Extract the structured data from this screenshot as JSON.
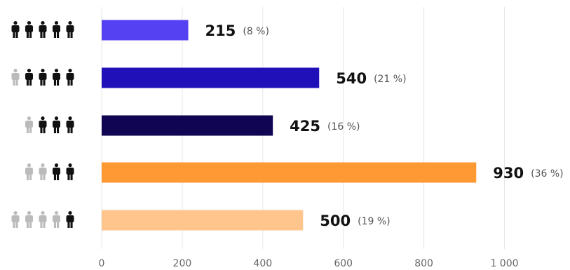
{
  "chart_data": {
    "type": "bar",
    "orientation": "horizontal",
    "title": "",
    "xlabel": "",
    "ylabel": "",
    "xlim": [
      0,
      1000
    ],
    "grid": true,
    "x_ticks": [
      0,
      200,
      400,
      600,
      800,
      1000
    ],
    "x_tick_labels": [
      "0",
      "200",
      "400",
      "600",
      "800",
      "1 000"
    ],
    "categories": [
      {
        "people_total": 5,
        "people_highlighted": 5
      },
      {
        "people_total": 5,
        "people_highlighted": 4
      },
      {
        "people_total": 4,
        "people_highlighted": 3
      },
      {
        "people_total": 4,
        "people_highlighted": 2
      },
      {
        "people_total": 5,
        "people_highlighted": 1
      }
    ],
    "values": [
      215,
      540,
      425,
      930,
      500
    ],
    "value_labels": [
      "215",
      "540",
      "425",
      "930",
      "500"
    ],
    "percent_labels": [
      "(8 %)",
      "(21 %)",
      "(16 %)",
      "(36 %)",
      "(19 %)"
    ],
    "colors": [
      "#5540f2",
      "#2010b8",
      "#0f0552",
      "#ff9933",
      "#ffc58c"
    ],
    "icon_colors": {
      "highlighted": "#111111",
      "dimmed": "#bbbbbb"
    }
  }
}
